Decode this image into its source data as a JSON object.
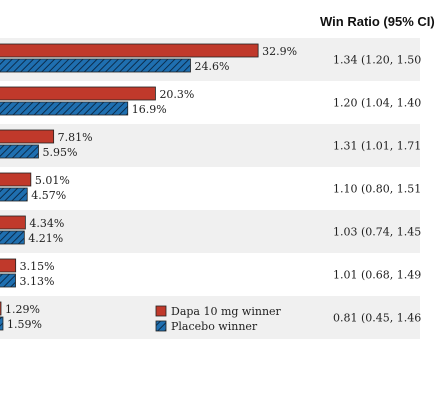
{
  "header": {
    "win_ratio_heading": "Win Ratio (95% CI)"
  },
  "chart_data": {
    "type": "bar",
    "orientation": "horizontal",
    "series": [
      {
        "name": "Dapa 10 mg winner",
        "color": "#c0392b",
        "values": [
          32.9,
          20.3,
          7.81,
          5.01,
          4.34,
          3.15,
          1.29
        ],
        "labels": [
          "32.9%",
          "20.3%",
          "7.81%",
          "5.01%",
          "4.34%",
          "3.15%",
          "1.29%"
        ]
      },
      {
        "name": "Placebo winner",
        "color": "#1f6fb0",
        "pattern": "hatched",
        "values": [
          24.6,
          16.9,
          5.95,
          4.57,
          4.21,
          3.13,
          1.59
        ],
        "labels": [
          "24.6%",
          "16.9%",
          "5.95%",
          "4.57%",
          "4.21%",
          "3.13%",
          "1.59%"
        ]
      }
    ],
    "win_ratios": [
      "1.34 (1.20, 1.50",
      "1.20 (1.04, 1.40",
      "1.31 (1.01, 1.71",
      "1.10 (0.80, 1.51",
      "1.03 (0.74, 1.45",
      "1.01 (0.68, 1.49",
      "0.81 (0.45, 1.46"
    ],
    "legend_position": "bottom-right of plot",
    "row_shading": [
      "#f0f0f0",
      "#ffffff"
    ]
  }
}
